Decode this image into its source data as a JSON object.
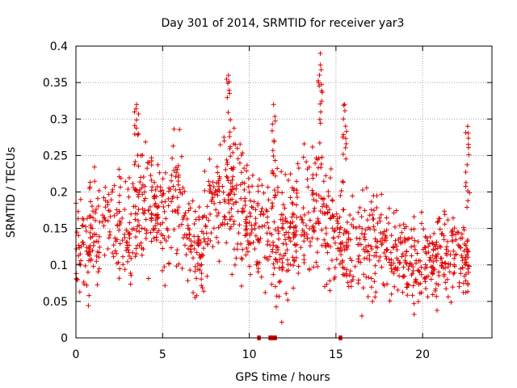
{
  "chart_data": {
    "type": "scatter",
    "title": "Day 301 of 2014, SRMTID for receiver yar3",
    "xlabel": "GPS time / hours",
    "ylabel": "SRMTID / TECUs",
    "xlim": [
      0,
      24
    ],
    "ylim": [
      0,
      0.4
    ],
    "x_ticks": [
      0,
      5,
      10,
      15,
      20
    ],
    "x_tick_labels": [
      "0",
      "5",
      "10",
      "15",
      "20"
    ],
    "y_ticks": [
      0,
      0.05,
      0.1,
      0.15,
      0.2,
      0.25,
      0.3,
      0.35,
      0.4
    ],
    "y_tick_labels": [
      "0",
      "0.05",
      "0.1",
      "0.15",
      "0.2",
      "0.25",
      "0.3",
      "0.35",
      "0.4"
    ],
    "grid": true,
    "marker": "+",
    "color": "#e00000",
    "zero_value_markers": [
      {
        "x_start": 10.55,
        "x_end": 10.57
      },
      {
        "x_start": 11.2,
        "x_end": 11.5
      },
      {
        "x_start": 15.25,
        "x_end": 15.27
      }
    ],
    "series": [
      {
        "name": "yar3",
        "x_range": [
          0,
          22.7
        ],
        "y_min": 0.02,
        "y_max": 0.39,
        "approx_envelope": [
          {
            "x": 0.0,
            "mean": 0.12,
            "spread": 0.06
          },
          {
            "x": 1.0,
            "mean": 0.15,
            "spread": 0.07
          },
          {
            "x": 2.0,
            "mean": 0.17,
            "spread": 0.06
          },
          {
            "x": 3.0,
            "mean": 0.14,
            "spread": 0.07
          },
          {
            "x": 4.0,
            "mean": 0.19,
            "spread": 0.08
          },
          {
            "x": 5.0,
            "mean": 0.17,
            "spread": 0.07
          },
          {
            "x": 6.0,
            "mean": 0.19,
            "spread": 0.08
          },
          {
            "x": 7.0,
            "mean": 0.12,
            "spread": 0.06
          },
          {
            "x": 8.0,
            "mean": 0.18,
            "spread": 0.07
          },
          {
            "x": 9.0,
            "mean": 0.2,
            "spread": 0.09
          },
          {
            "x": 10.0,
            "mean": 0.16,
            "spread": 0.06
          },
          {
            "x": 11.0,
            "mean": 0.14,
            "spread": 0.07
          },
          {
            "x": 12.0,
            "mean": 0.13,
            "spread": 0.08
          },
          {
            "x": 13.0,
            "mean": 0.16,
            "spread": 0.07
          },
          {
            "x": 14.0,
            "mean": 0.18,
            "spread": 0.09
          },
          {
            "x": 15.0,
            "mean": 0.13,
            "spread": 0.07
          },
          {
            "x": 16.0,
            "mean": 0.13,
            "spread": 0.06
          },
          {
            "x": 17.0,
            "mean": 0.13,
            "spread": 0.07
          },
          {
            "x": 18.0,
            "mean": 0.12,
            "spread": 0.05
          },
          {
            "x": 19.0,
            "mean": 0.11,
            "spread": 0.05
          },
          {
            "x": 20.0,
            "mean": 0.1,
            "spread": 0.05
          },
          {
            "x": 21.0,
            "mean": 0.11,
            "spread": 0.05
          },
          {
            "x": 22.0,
            "mean": 0.12,
            "spread": 0.05
          },
          {
            "x": 22.7,
            "mean": 0.11,
            "spread": 0.04
          }
        ],
        "notable_peaks": [
          {
            "x": 3.5,
            "y": 0.32
          },
          {
            "x": 8.8,
            "y": 0.36
          },
          {
            "x": 11.4,
            "y": 0.32
          },
          {
            "x": 14.1,
            "y": 0.39
          },
          {
            "x": 15.5,
            "y": 0.32
          },
          {
            "x": 22.6,
            "y": 0.29
          }
        ]
      }
    ]
  }
}
